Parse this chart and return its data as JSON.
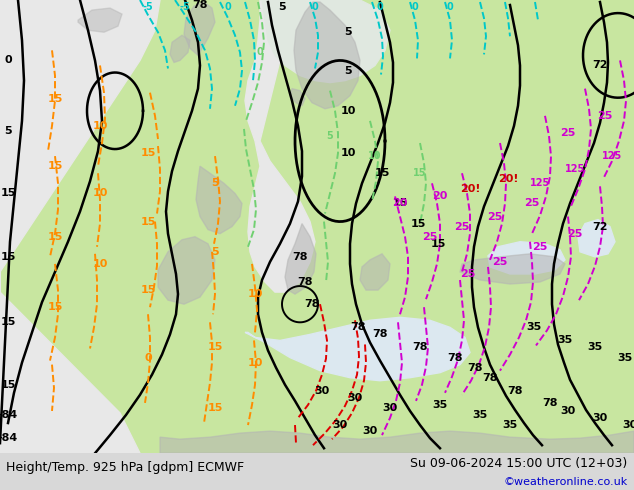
{
  "title_left": "Height/Temp. 925 hPa [gdpm] ECMWF",
  "title_right": "Su 09-06-2024 15:00 UTC (12+03)",
  "copyright": "©weatheronline.co.uk",
  "fig_width": 6.34,
  "fig_height": 4.9,
  "dpi": 100,
  "bg_map_green": "#c8e6a0",
  "bg_ocean_white": "#e8e8e8",
  "bg_cold_grey": "#d8d8d8",
  "land_grey": "#b8b8b8",
  "copyright_color": "#0000cd",
  "font_size_title": 9,
  "font_size_copyright": 8,
  "bottom_bar_color": "#d8d8d8",
  "black_contour_lw": 1.8,
  "temp_contour_lw": 1.4,
  "cyan_color": "#00c8c8",
  "orange_color": "#ff8c00",
  "green_color": "#70d070",
  "magenta_color": "#d000d0",
  "red_color": "#e00000",
  "black": "#000000"
}
